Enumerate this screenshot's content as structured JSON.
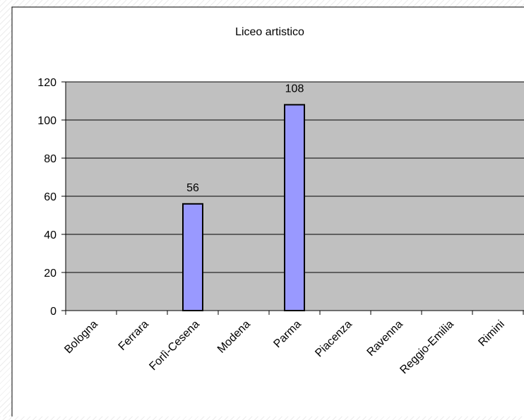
{
  "chart_data": {
    "type": "bar",
    "title": "Liceo artistico",
    "xlabel": "",
    "ylabel": "",
    "categories": [
      "Bologna",
      "Ferrara",
      "Forlì-Cesena",
      "Modena",
      "Parma",
      "Piacenza",
      "Ravenna",
      "Reggio-Emilia",
      "Rimini"
    ],
    "values": [
      0,
      0,
      56,
      0,
      108,
      0,
      0,
      0,
      0
    ],
    "data_labels": [
      "",
      "",
      "56",
      "",
      "108",
      "",
      "",
      "",
      ""
    ],
    "ylim": [
      0,
      120
    ],
    "yticks": [
      "0",
      "20",
      "40",
      "60",
      "80",
      "100",
      "120"
    ],
    "grid": true,
    "legend": "none",
    "colors": {
      "plot_area": "#c0c0c0",
      "bar_fill": "#9999ff",
      "bar_stroke": "#000000",
      "gridline": "#000000"
    }
  }
}
